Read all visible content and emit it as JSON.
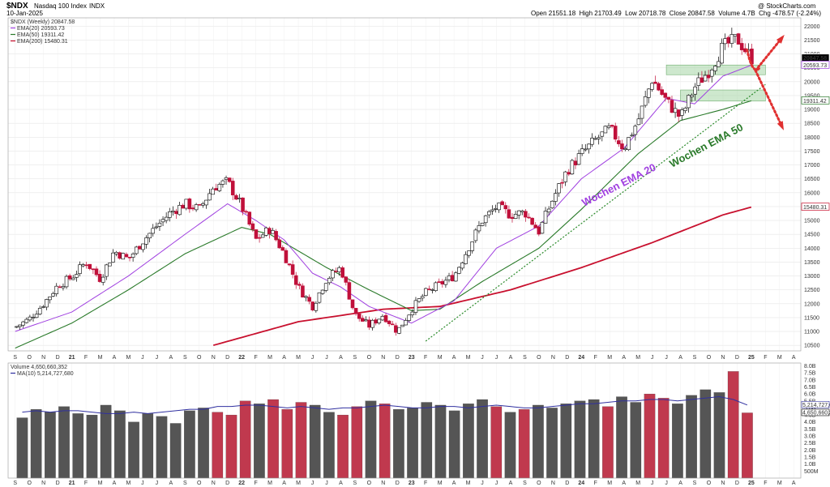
{
  "header": {
    "symbol": "$NDX",
    "name": "Nasdaq 100 Index",
    "exchange": "INDX",
    "date": "10-Jan-2025",
    "ohlc": "Open 21551.18  High 21703.49  Low 20718.78  Close 20847.58  Volume 4.7B  Chg -478.57 (-2.24%)",
    "brand": "@ StockCharts.com"
  },
  "legend": {
    "symbol_line": "$NDX (Weekly) 20847.58",
    "ema20": "EMA(20) 20593.73",
    "ema50": "EMA(50) 19311.42",
    "ema200": "EMA(200) 15480.31"
  },
  "volume_legend": {
    "volume": "Volume 4,650,660,352",
    "ma": "MA(10) 5,214,727,680"
  },
  "annotations": {
    "ema20": "Wochen EMA 20",
    "ema50": "Wochen EMA 50"
  },
  "colors": {
    "up": "#000000",
    "down": "#c0103a",
    "ema20": "#a040e0",
    "ema50": "#2a7a2a",
    "ema200": "#c8102e",
    "trend": "#2a8a2a",
    "zone": "#9ed29e",
    "arrow": "#e03030",
    "vol_up": "#555555",
    "vol_down": "#c0394e",
    "vol_ma": "#3030a0"
  },
  "chart_data": [
    {
      "type": "candlestick",
      "title": "$NDX Nasdaq 100 Index INDX",
      "ylim": [
        10300,
        22300
      ],
      "yticks": [
        10500,
        11000,
        11500,
        12000,
        12500,
        13000,
        13500,
        14000,
        14500,
        15000,
        15500,
        16000,
        16500,
        17000,
        17500,
        18000,
        18500,
        19000,
        19500,
        20000,
        20500,
        21000,
        21500,
        22000
      ],
      "last_labels": [
        "20847.58",
        "20593.73",
        "19311.42",
        "15480.31"
      ],
      "x": [
        "S",
        "O",
        "N",
        "D",
        "21",
        "F",
        "M",
        "A",
        "M",
        "J",
        "J",
        "A",
        "S",
        "O",
        "N",
        "D",
        "22",
        "F",
        "M",
        "A",
        "M",
        "J",
        "J",
        "A",
        "S",
        "O",
        "N",
        "D",
        "23",
        "F",
        "M",
        "A",
        "M",
        "J",
        "J",
        "A",
        "S",
        "O",
        "N",
        "D",
        "24",
        "F",
        "M",
        "A",
        "M",
        "J",
        "J",
        "A",
        "S",
        "O",
        "N",
        "D",
        "25",
        "F",
        "M",
        "A"
      ],
      "price_path": [
        [
          0,
          11150
        ],
        [
          1,
          11450
        ],
        [
          2,
          12000
        ],
        [
          3,
          12650
        ],
        [
          4,
          12950
        ],
        [
          5,
          13500
        ],
        [
          6,
          12900
        ],
        [
          7,
          13900
        ],
        [
          8,
          13600
        ],
        [
          9,
          14250
        ],
        [
          10,
          14800
        ],
        [
          11,
          15300
        ],
        [
          12,
          15600
        ],
        [
          13,
          15400
        ],
        [
          14,
          16200
        ],
        [
          15,
          16400
        ],
        [
          16,
          15500
        ],
        [
          17,
          14300
        ],
        [
          18,
          14700
        ],
        [
          19,
          13800
        ],
        [
          20,
          12600
        ],
        [
          21,
          11900
        ],
        [
          22,
          12900
        ],
        [
          23,
          13300
        ],
        [
          24,
          11600
        ],
        [
          25,
          11200
        ],
        [
          26,
          11600
        ],
        [
          27,
          11000
        ],
        [
          28,
          11800
        ],
        [
          29,
          12400
        ],
        [
          30,
          12700
        ],
        [
          31,
          13000
        ],
        [
          32,
          14000
        ],
        [
          33,
          15000
        ],
        [
          34,
          15500
        ],
        [
          35,
          15200
        ],
        [
          36,
          15300
        ],
        [
          37,
          14600
        ],
        [
          38,
          15800
        ],
        [
          39,
          16800
        ],
        [
          40,
          17400
        ],
        [
          41,
          17900
        ],
        [
          42,
          18300
        ],
        [
          43,
          17600
        ],
        [
          44,
          18600
        ],
        [
          45,
          20100
        ],
        [
          46,
          19300
        ],
        [
          47,
          18700
        ],
        [
          48,
          19800
        ],
        [
          49,
          20400
        ],
        [
          50,
          21250
        ],
        [
          51,
          21550
        ],
        [
          52,
          20848
        ]
      ],
      "ema20_path": [
        [
          0,
          11000
        ],
        [
          4,
          11700
        ],
        [
          8,
          13000
        ],
        [
          12,
          14500
        ],
        [
          15,
          15600
        ],
        [
          17,
          15000
        ],
        [
          19,
          14300
        ],
        [
          21,
          13100
        ],
        [
          23,
          12600
        ],
        [
          25,
          11900
        ],
        [
          28,
          11300
        ],
        [
          31,
          12100
        ],
        [
          34,
          14000
        ],
        [
          37,
          14800
        ],
        [
          40,
          16500
        ],
        [
          43,
          17600
        ],
        [
          46,
          19400
        ],
        [
          48,
          19200
        ],
        [
          50,
          20200
        ],
        [
          52,
          20594
        ]
      ],
      "ema50_path": [
        [
          0,
          10400
        ],
        [
          4,
          11300
        ],
        [
          8,
          12500
        ],
        [
          12,
          13800
        ],
        [
          16,
          14750
        ],
        [
          18,
          14500
        ],
        [
          22,
          13300
        ],
        [
          25,
          12500
        ],
        [
          28,
          11750
        ],
        [
          30,
          11800
        ],
        [
          33,
          12800
        ],
        [
          37,
          14000
        ],
        [
          40,
          15400
        ],
        [
          44,
          17400
        ],
        [
          47,
          18600
        ],
        [
          50,
          19000
        ],
        [
          52,
          19311
        ]
      ],
      "ema200_path": [
        [
          14,
          10500
        ],
        [
          20,
          11350
        ],
        [
          26,
          11800
        ],
        [
          30,
          11900
        ],
        [
          35,
          12500
        ],
        [
          40,
          13300
        ],
        [
          45,
          14200
        ],
        [
          50,
          15200
        ],
        [
          52,
          15480
        ]
      ],
      "trendline": [
        [
          29,
          10650
        ],
        [
          53,
          19900
        ]
      ],
      "zones": [
        [
          46,
          53,
          20250,
          20600
        ],
        [
          47,
          53,
          19300,
          19700
        ]
      ],
      "arrows_from": [
        52.3,
        20400
      ],
      "arrows_to": [
        [
          54.2,
          21600
        ],
        [
          54.2,
          18350
        ]
      ]
    },
    {
      "type": "bar",
      "title": "Volume",
      "ylim": [
        0,
        8200000000
      ],
      "yticks": [
        "8.0B",
        "7.5B",
        "7.0B",
        "6.5B",
        "6.0B",
        "5.5B",
        "5.0B",
        "4.5B",
        "4.0B",
        "3.5B",
        "3.0B",
        "2.5B",
        "2.0B",
        "1.5B",
        "1.0B",
        "500M"
      ],
      "last_labels": [
        "5,214,727,680",
        "4,650,660,352"
      ],
      "values_b": [
        4.3,
        4.9,
        4.7,
        5.1,
        4.6,
        4.5,
        5.2,
        4.8,
        4.0,
        4.6,
        4.4,
        3.9,
        4.8,
        5.0,
        4.7,
        4.5,
        5.5,
        5.3,
        5.6,
        4.9,
        5.4,
        5.2,
        4.7,
        4.5,
        5.1,
        5.5,
        5.3,
        4.9,
        5.0,
        5.4,
        5.2,
        4.8,
        5.3,
        5.6,
        5.1,
        4.7,
        4.9,
        5.2,
        5.0,
        5.3,
        5.5,
        5.6,
        5.1,
        5.8,
        5.4,
        6.0,
        5.7,
        5.3,
        5.9,
        6.3,
        6.1,
        7.6,
        4.65
      ],
      "ma_b": [
        4.7,
        4.8,
        4.7,
        4.8,
        4.8,
        4.7,
        4.6,
        4.6,
        4.7,
        4.6,
        4.7,
        4.8,
        4.9,
        4.9,
        5.1,
        5.1,
        5.2,
        5.2,
        5.1,
        5.0,
        5.1,
        5.0,
        4.9,
        5.0,
        5.0,
        5.1,
        5.2,
        5.1,
        5.0,
        5.0,
        5.1,
        5.1,
        5.0,
        5.1,
        5.2,
        5.1,
        5.0,
        5.0,
        5.1,
        5.2,
        5.3,
        5.3,
        5.4,
        5.5,
        5.5,
        5.6,
        5.6,
        5.5,
        5.6,
        5.7,
        5.8,
        5.6,
        5.21
      ]
    }
  ]
}
